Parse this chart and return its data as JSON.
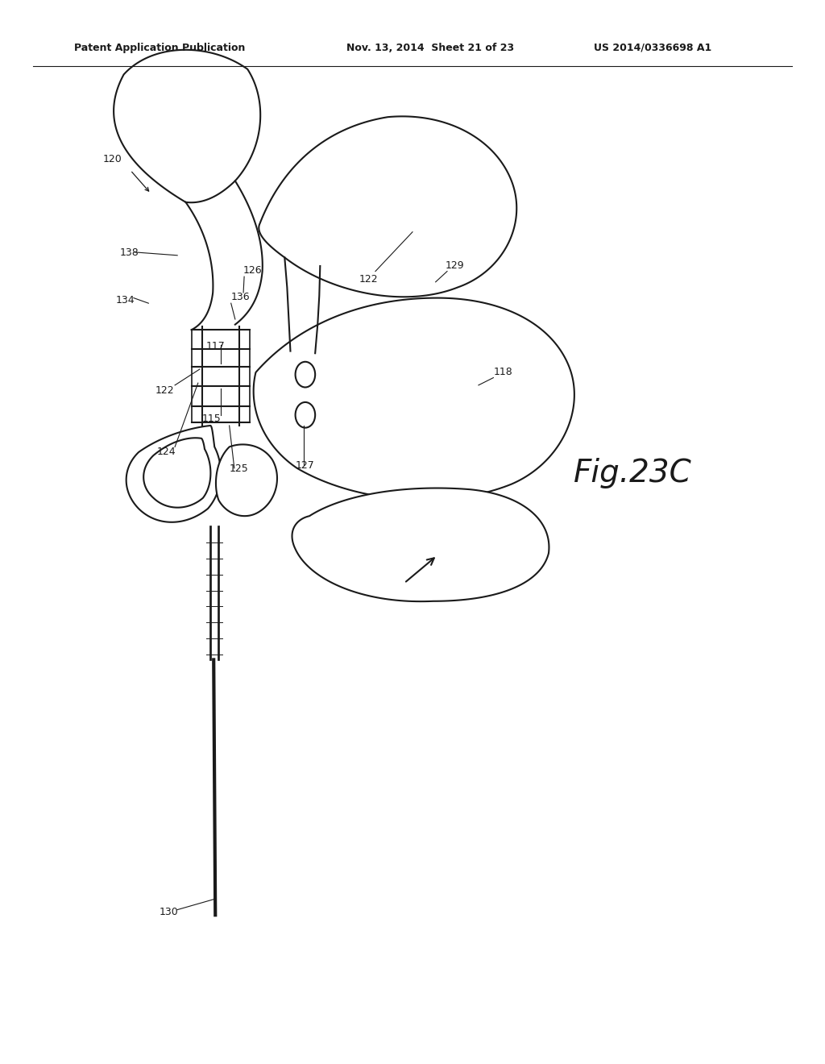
{
  "background_color": "#ffffff",
  "line_color": "#1a1a1a",
  "line_width": 1.5,
  "header_left": "Patent Application Publication",
  "header_center": "Nov. 13, 2014  Sheet 21 of 23",
  "header_right": "US 2014/0336698 A1",
  "fig_label": "Fig.23C"
}
